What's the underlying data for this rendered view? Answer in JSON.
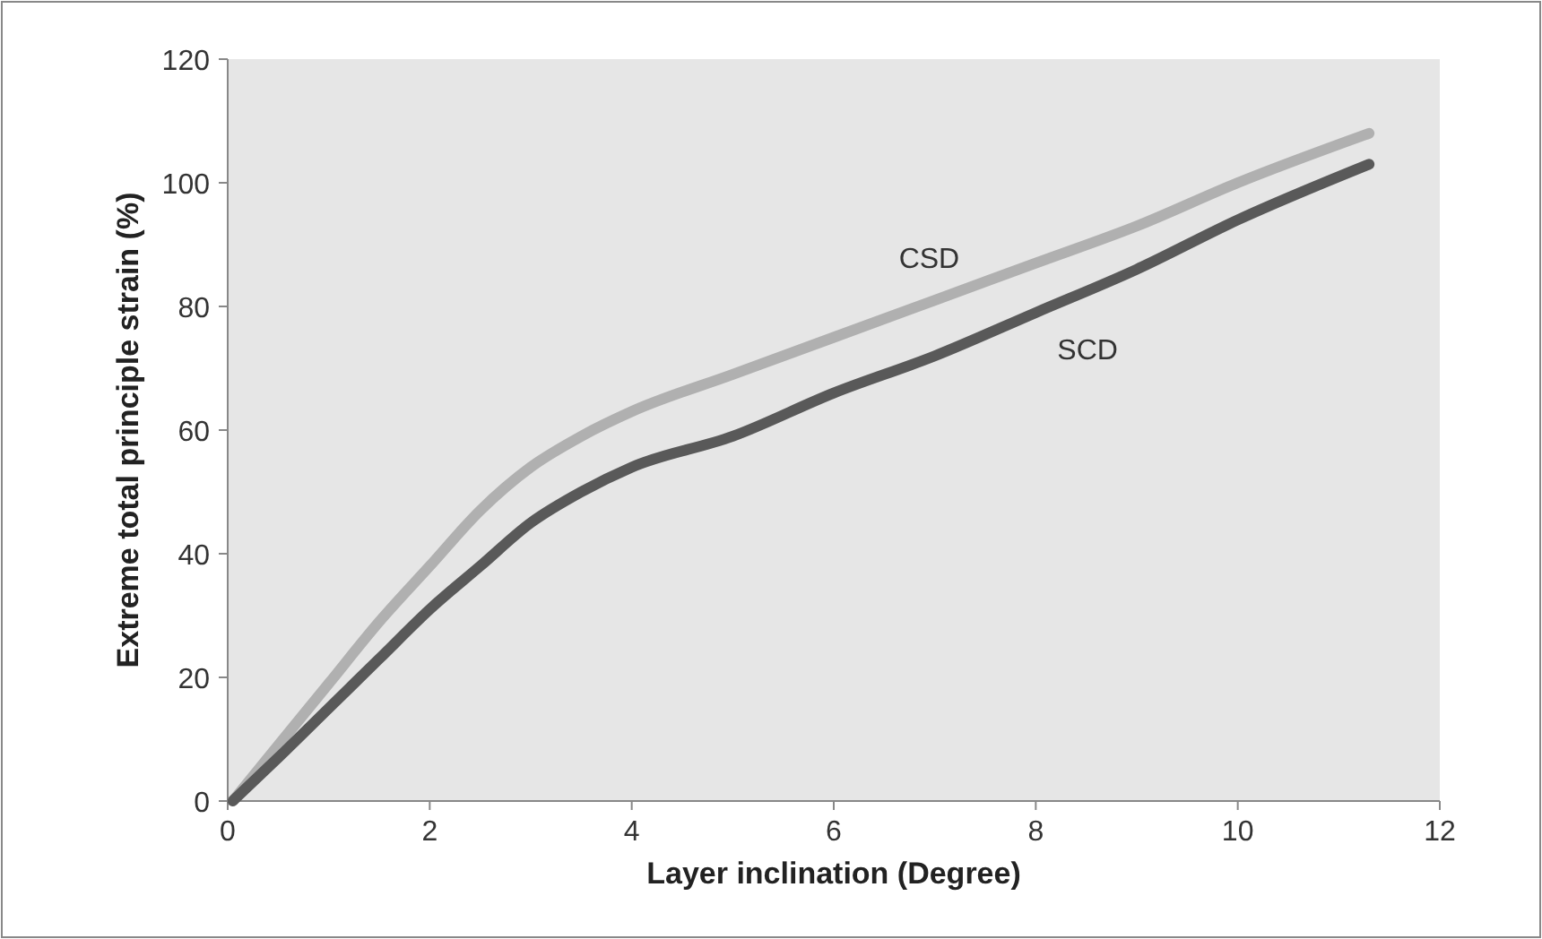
{
  "chart_data": {
    "type": "line",
    "xlabel": "Layer inclination  (Degree)",
    "ylabel": "Extreme total principle strain (%)",
    "xlim": [
      0,
      12
    ],
    "xticks": [
      0,
      2,
      4,
      6,
      8,
      10,
      12
    ],
    "ylim": [
      0,
      120
    ],
    "yticks": [
      0,
      20,
      40,
      60,
      80,
      100,
      120
    ],
    "grid": false,
    "legend": false,
    "marker": "none",
    "line_style": "solid",
    "x": [
      0.05,
      0.5,
      1,
      1.5,
      2,
      2.5,
      3,
      3.5,
      4,
      5,
      6,
      7,
      8,
      9,
      10,
      11.3
    ],
    "series": [
      {
        "name": "CSD",
        "color": "#b0b0b0",
        "values": [
          0,
          9,
          19,
          29,
          38,
          47,
          54,
          59,
          63,
          69,
          75,
          81,
          87,
          93,
          100,
          108
        ]
      },
      {
        "name": "SCD",
        "color": "#595959",
        "values": [
          0,
          7,
          15,
          23,
          31,
          38,
          45,
          50,
          54,
          59,
          66,
          72,
          79,
          86,
          94,
          103
        ]
      }
    ]
  }
}
